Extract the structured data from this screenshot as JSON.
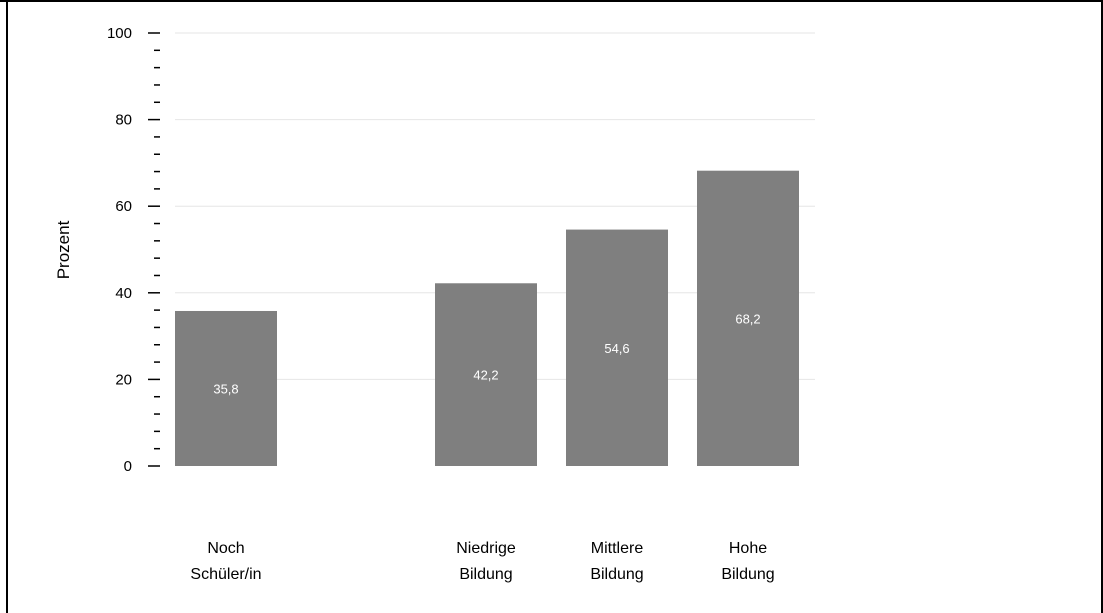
{
  "chart_data": {
    "type": "bar",
    "title": "",
    "xlabel": "",
    "ylabel": "Prozent",
    "ylim": [
      0,
      100
    ],
    "yticks": [
      0,
      20,
      40,
      60,
      80,
      100
    ],
    "grid": true,
    "categories": [
      [
        "Noch",
        "Schüler/in"
      ],
      [
        "Niedrige",
        "Bildung"
      ],
      [
        "Mittlere",
        "Bildung"
      ],
      [
        "Hohe",
        "Bildung"
      ]
    ],
    "values": [
      35.8,
      42.2,
      54.6,
      68.2
    ],
    "value_labels": [
      "35,8",
      "42,2",
      "54,6",
      "68,2"
    ],
    "colors": {
      "bar": "#7f7f7f",
      "grid": "#e6e6e6",
      "axis": "#000000",
      "label": "#ffffff"
    }
  }
}
